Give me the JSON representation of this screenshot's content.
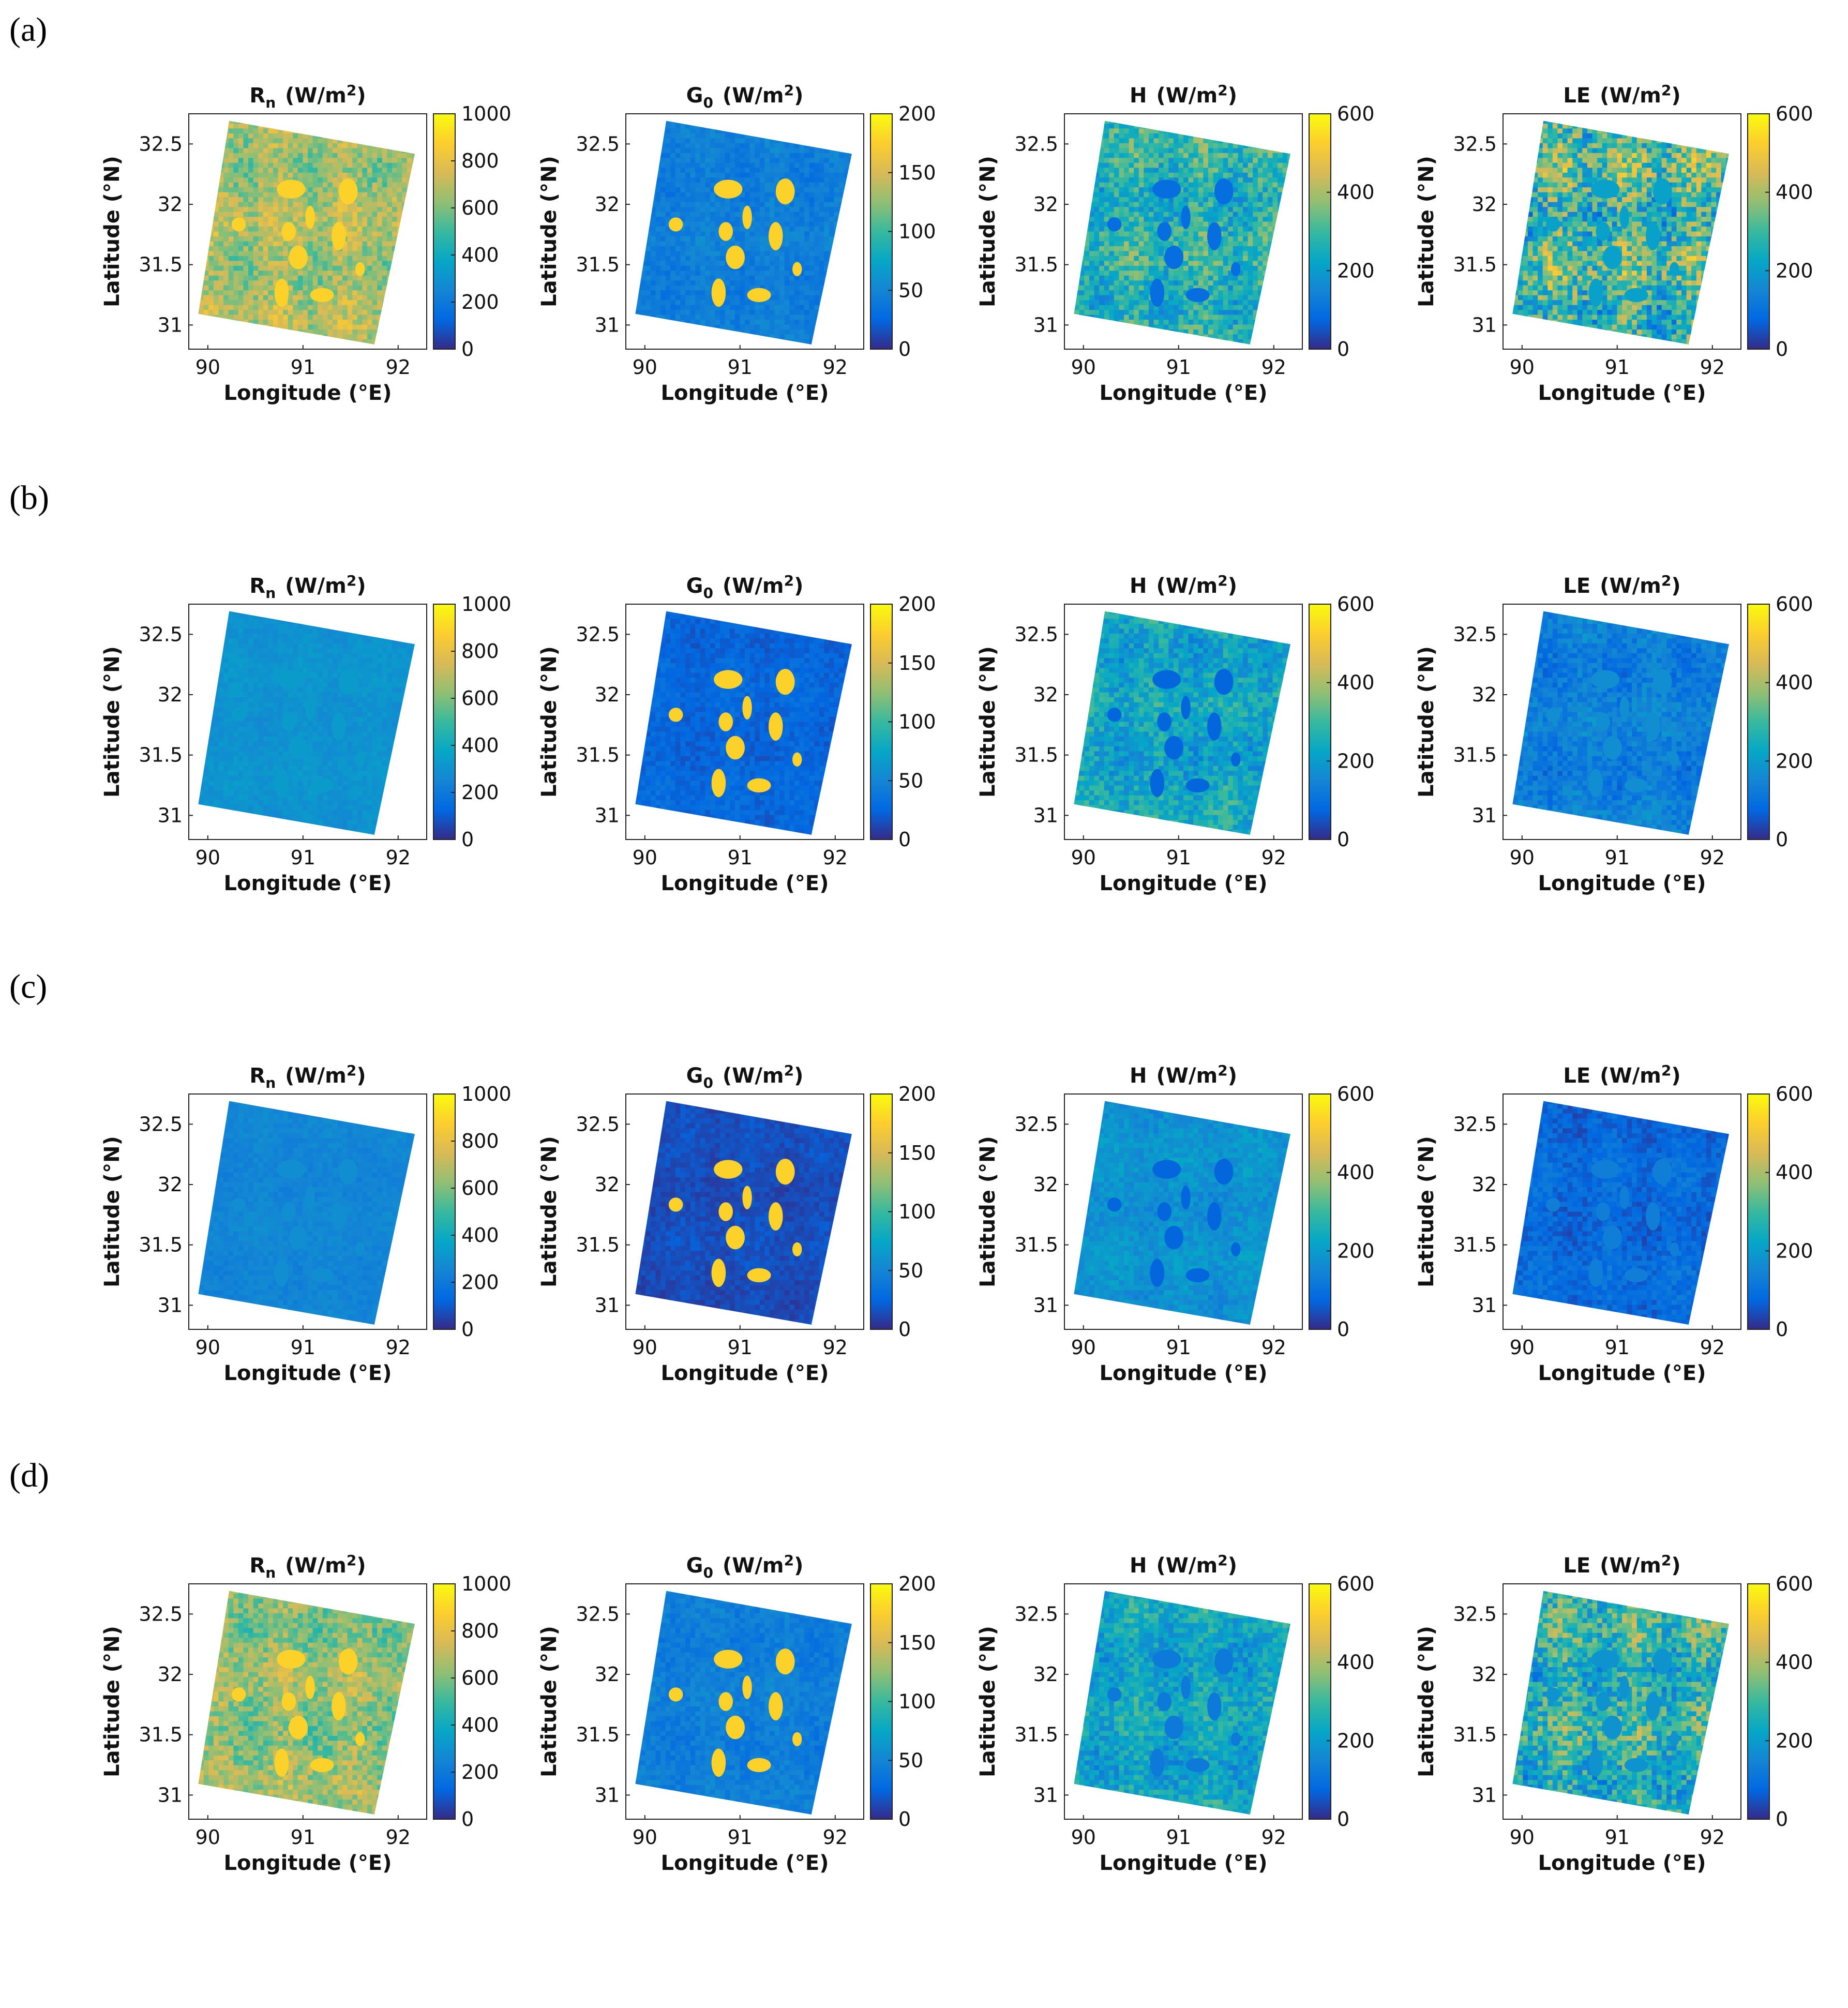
{
  "row_labels": [
    "(a)",
    "(b)",
    "(c)",
    "(d)"
  ],
  "colors": {
    "parula": [
      "#352a87",
      "#0268e1",
      "#1485d4",
      "#06a7c6",
      "#38b99e",
      "#92bf73",
      "#d9ba56",
      "#fcce2e",
      "#f9fb0e"
    ],
    "lake": "#fcd22a",
    "axis": "#222222"
  },
  "chart_data": [
    {
      "type": "heatmap",
      "row": "(a)",
      "title": "R",
      "sub": "n",
      "unit": "(W/m",
      "sup": "2",
      "close": ")",
      "xlabel": "Longitude  (°E)",
      "ylabel": "Latitude  (°N)",
      "xticks": [
        "90",
        "91",
        "92"
      ],
      "yticks": [
        "31",
        "31.5",
        "32",
        "32.5"
      ],
      "xlim": [
        89.8,
        92.3
      ],
      "ylim": [
        30.8,
        32.75
      ],
      "clim": [
        0,
        1000
      ],
      "cticks": [
        "0",
        "200",
        "400",
        "600",
        "800",
        "1000"
      ],
      "mean_level": 0.66,
      "spread": 0.12,
      "lake_level": 0.8,
      "lakes_yellow": true
    },
    {
      "type": "heatmap",
      "row": "(a)",
      "title": "G",
      "sub": "0",
      "unit": "(W/m",
      "sup": "2",
      "close": ")",
      "xlabel": "Longitude  (°E)",
      "ylabel": "Latitude  (°N)",
      "xticks": [
        "90",
        "91",
        "92"
      ],
      "yticks": [
        "31",
        "31.5",
        "32",
        "32.5"
      ],
      "xlim": [
        89.8,
        92.3
      ],
      "ylim": [
        30.8,
        32.75
      ],
      "clim": [
        0,
        200
      ],
      "cticks": [
        "0",
        "50",
        "100",
        "150",
        "200"
      ],
      "mean_level": 0.22,
      "spread": 0.05,
      "lake_level": 0.95,
      "lakes_yellow": true
    },
    {
      "type": "heatmap",
      "row": "(a)",
      "title": "H",
      "sub": "",
      "unit": "(W/m",
      "sup": "2",
      "close": ")",
      "xlabel": "Longitude  (°E)",
      "ylabel": "Latitude  (°N)",
      "xticks": [
        "90",
        "91",
        "92"
      ],
      "yticks": [
        "31",
        "31.5",
        "32",
        "32.5"
      ],
      "xlim": [
        89.8,
        92.3
      ],
      "ylim": [
        30.8,
        32.75
      ],
      "clim": [
        0,
        600
      ],
      "cticks": [
        "0",
        "200",
        "400",
        "600"
      ],
      "mean_level": 0.45,
      "spread": 0.15,
      "lake_level": 0.15,
      "lakes_yellow": false
    },
    {
      "type": "heatmap",
      "row": "(a)",
      "title": "LE",
      "sub": "",
      "unit": "(W/m",
      "sup": "2",
      "close": ")",
      "xlabel": "Longitude  (°E)",
      "ylabel": "Latitude  (°N)",
      "xticks": [
        "90",
        "91",
        "92"
      ],
      "yticks": [
        "31",
        "31.5",
        "32",
        "32.5"
      ],
      "xlim": [
        89.8,
        92.3
      ],
      "ylim": [
        30.8,
        32.75
      ],
      "clim": [
        0,
        600
      ],
      "cticks": [
        "0",
        "200",
        "400",
        "600"
      ],
      "mean_level": 0.5,
      "spread": 0.25,
      "lake_level": 0.35,
      "lakes_yellow": false
    },
    {
      "type": "heatmap",
      "row": "(b)",
      "title": "R",
      "sub": "n",
      "unit": "(W/m",
      "sup": "2",
      "close": ")",
      "xlabel": "Longitude  (°E)",
      "ylabel": "Latitude  (°N)",
      "xticks": [
        "90",
        "91",
        "92"
      ],
      "yticks": [
        "31",
        "31.5",
        "32",
        "32.5"
      ],
      "xlim": [
        89.8,
        92.3
      ],
      "ylim": [
        30.8,
        32.75
      ],
      "clim": [
        0,
        1000
      ],
      "cticks": [
        "0",
        "200",
        "400",
        "600",
        "800",
        "1000"
      ],
      "mean_level": 0.3,
      "spread": 0.03,
      "lake_level": 0.33,
      "lakes_yellow": false
    },
    {
      "type": "heatmap",
      "row": "(b)",
      "title": "G",
      "sub": "0",
      "unit": "(W/m",
      "sup": "2",
      "close": ")",
      "xlabel": "Longitude  (°E)",
      "ylabel": "Latitude  (°N)",
      "xticks": [
        "90",
        "91",
        "92"
      ],
      "yticks": [
        "31",
        "31.5",
        "32",
        "32.5"
      ],
      "xlim": [
        89.8,
        92.3
      ],
      "ylim": [
        30.8,
        32.75
      ],
      "clim": [
        0,
        200
      ],
      "cticks": [
        "0",
        "50",
        "100",
        "150",
        "200"
      ],
      "mean_level": 0.13,
      "spread": 0.04,
      "lake_level": 0.95,
      "lakes_yellow": true
    },
    {
      "type": "heatmap",
      "row": "(b)",
      "title": "H",
      "sub": "",
      "unit": "(W/m",
      "sup": "2",
      "close": ")",
      "xlabel": "Longitude  (°E)",
      "ylabel": "Latitude  (°N)",
      "xticks": [
        "90",
        "91",
        "92"
      ],
      "yticks": [
        "31",
        "31.5",
        "32",
        "32.5"
      ],
      "xlim": [
        89.8,
        92.3
      ],
      "ylim": [
        30.8,
        32.75
      ],
      "clim": [
        0,
        600
      ],
      "cticks": [
        "0",
        "200",
        "400",
        "600"
      ],
      "mean_level": 0.38,
      "spread": 0.12,
      "lake_level": 0.12,
      "lakes_yellow": false
    },
    {
      "type": "heatmap",
      "row": "(b)",
      "title": "LE",
      "sub": "",
      "unit": "(W/m",
      "sup": "2",
      "close": ")",
      "xlabel": "Longitude  (°E)",
      "ylabel": "Latitude  (°N)",
      "xticks": [
        "90",
        "91",
        "92"
      ],
      "yticks": [
        "31",
        "31.5",
        "32",
        "32.5"
      ],
      "xlim": [
        89.8,
        92.3
      ],
      "ylim": [
        30.8,
        32.75
      ],
      "clim": [
        0,
        600
      ],
      "cticks": [
        "0",
        "200",
        "400",
        "600"
      ],
      "mean_level": 0.22,
      "spread": 0.08,
      "lake_level": 0.28,
      "lakes_yellow": false
    },
    {
      "type": "heatmap",
      "row": "(c)",
      "title": "R",
      "sub": "n",
      "unit": "(W/m",
      "sup": "2",
      "close": ")",
      "xlabel": "Longitude  (°E)",
      "ylabel": "Latitude  (°N)",
      "xticks": [
        "90",
        "91",
        "92"
      ],
      "yticks": [
        "31",
        "31.5",
        "32",
        "32.5"
      ],
      "xlim": [
        89.8,
        92.3
      ],
      "ylim": [
        30.8,
        32.75
      ],
      "clim": [
        0,
        1000
      ],
      "cticks": [
        "0",
        "200",
        "400",
        "600",
        "800",
        "1000"
      ],
      "mean_level": 0.25,
      "spread": 0.03,
      "lake_level": 0.28,
      "lakes_yellow": false
    },
    {
      "type": "heatmap",
      "row": "(c)",
      "title": "G",
      "sub": "0",
      "unit": "(W/m",
      "sup": "2",
      "close": ")",
      "xlabel": "Longitude  (°E)",
      "ylabel": "Latitude  (°N)",
      "xticks": [
        "90",
        "91",
        "92"
      ],
      "yticks": [
        "31",
        "31.5",
        "32",
        "32.5"
      ],
      "xlim": [
        89.8,
        92.3
      ],
      "ylim": [
        30.8,
        32.75
      ],
      "clim": [
        0,
        200
      ],
      "cticks": [
        "0",
        "50",
        "100",
        "150",
        "200"
      ],
      "mean_level": 0.07,
      "spread": 0.03,
      "lake_level": 0.95,
      "lakes_yellow": true
    },
    {
      "type": "heatmap",
      "row": "(c)",
      "title": "H",
      "sub": "",
      "unit": "(W/m",
      "sup": "2",
      "close": ")",
      "xlabel": "Longitude  (°E)",
      "ylabel": "Latitude  (°N)",
      "xticks": [
        "90",
        "91",
        "92"
      ],
      "yticks": [
        "31",
        "31.5",
        "32",
        "32.5"
      ],
      "xlim": [
        89.8,
        92.3
      ],
      "ylim": [
        30.8,
        32.75
      ],
      "clim": [
        0,
        600
      ],
      "cticks": [
        "0",
        "200",
        "400",
        "600"
      ],
      "mean_level": 0.3,
      "spread": 0.06,
      "lake_level": 0.12,
      "lakes_yellow": false
    },
    {
      "type": "heatmap",
      "row": "(c)",
      "title": "LE",
      "sub": "",
      "unit": "(W/m",
      "sup": "2",
      "close": ")",
      "xlabel": "Longitude  (°E)",
      "ylabel": "Latitude  (°N)",
      "xticks": [
        "90",
        "91",
        "92"
      ],
      "yticks": [
        "31",
        "31.5",
        "32",
        "32.5"
      ],
      "xlim": [
        89.8,
        92.3
      ],
      "ylim": [
        30.8,
        32.75
      ],
      "clim": [
        0,
        600
      ],
      "cticks": [
        "0",
        "200",
        "400",
        "600"
      ],
      "mean_level": 0.14,
      "spread": 0.06,
      "lake_level": 0.22,
      "lakes_yellow": false
    },
    {
      "type": "heatmap",
      "row": "(d)",
      "title": "R",
      "sub": "n",
      "unit": "(W/m",
      "sup": "2",
      "close": ")",
      "xlabel": "Longitude  (°E)",
      "ylabel": "Latitude  (°N)",
      "xticks": [
        "90",
        "91",
        "92"
      ],
      "yticks": [
        "31",
        "31.5",
        "32",
        "32.5"
      ],
      "xlim": [
        89.8,
        92.3
      ],
      "ylim": [
        30.8,
        32.75
      ],
      "clim": [
        0,
        1000
      ],
      "cticks": [
        "0",
        "200",
        "400",
        "600",
        "800",
        "1000"
      ],
      "mean_level": 0.63,
      "spread": 0.12,
      "lake_level": 0.8,
      "lakes_yellow": true
    },
    {
      "type": "heatmap",
      "row": "(d)",
      "title": "G",
      "sub": "0",
      "unit": "(W/m",
      "sup": "2",
      "close": ")",
      "xlabel": "Longitude  (°E)",
      "ylabel": "Latitude  (°N)",
      "xticks": [
        "90",
        "91",
        "92"
      ],
      "yticks": [
        "31",
        "31.5",
        "32",
        "32.5"
      ],
      "xlim": [
        89.8,
        92.3
      ],
      "ylim": [
        30.8,
        32.75
      ],
      "clim": [
        0,
        200
      ],
      "cticks": [
        "0",
        "50",
        "100",
        "150",
        "200"
      ],
      "mean_level": 0.22,
      "spread": 0.05,
      "lake_level": 0.95,
      "lakes_yellow": true
    },
    {
      "type": "heatmap",
      "row": "(d)",
      "title": "H",
      "sub": "",
      "unit": "(W/m",
      "sup": "2",
      "close": ")",
      "xlabel": "Longitude  (°E)",
      "ylabel": "Latitude  (°N)",
      "xticks": [
        "90",
        "91",
        "92"
      ],
      "yticks": [
        "31",
        "31.5",
        "32",
        "32.5"
      ],
      "xlim": [
        89.8,
        92.3
      ],
      "ylim": [
        30.8,
        32.75
      ],
      "clim": [
        0,
        600
      ],
      "cticks": [
        "0",
        "200",
        "400",
        "600"
      ],
      "mean_level": 0.38,
      "spread": 0.12,
      "lake_level": 0.2,
      "lakes_yellow": false
    },
    {
      "type": "heatmap",
      "row": "(d)",
      "title": "LE",
      "sub": "",
      "unit": "(W/m",
      "sup": "2",
      "close": ")",
      "xlabel": "Longitude  (°E)",
      "ylabel": "Latitude  (°N)",
      "xticks": [
        "90",
        "91",
        "92"
      ],
      "yticks": [
        "31",
        "31.5",
        "32",
        "32.5"
      ],
      "xlim": [
        89.8,
        92.3
      ],
      "ylim": [
        30.8,
        32.75
      ],
      "clim": [
        0,
        600
      ],
      "cticks": [
        "0",
        "200",
        "400",
        "600"
      ],
      "mean_level": 0.45,
      "spread": 0.2,
      "lake_level": 0.3,
      "lakes_yellow": false
    }
  ]
}
